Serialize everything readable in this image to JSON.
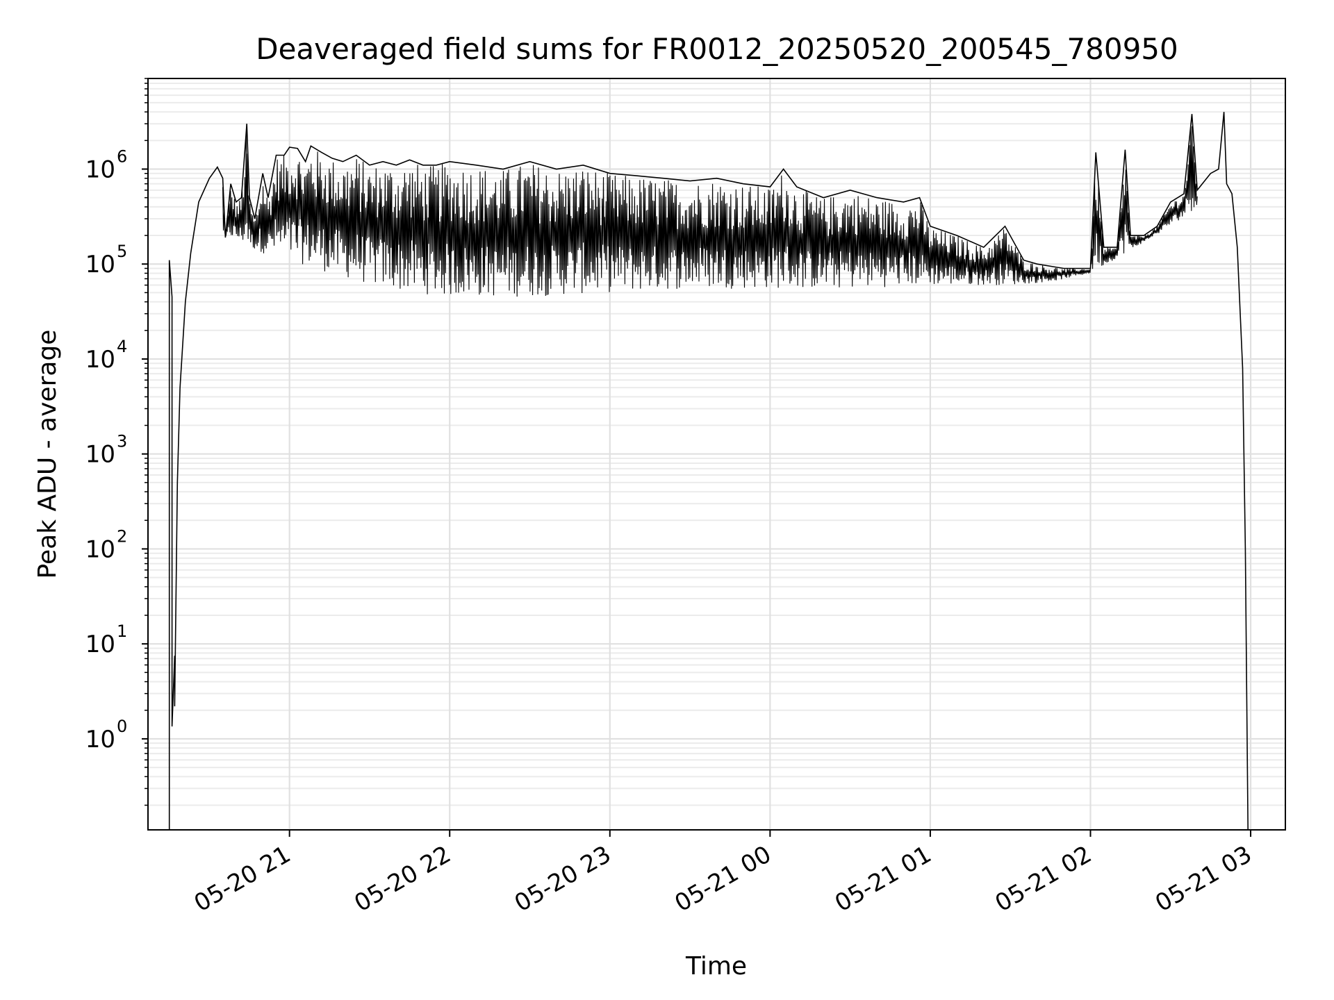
{
  "chart_data": {
    "type": "line",
    "title": "Deaveraged field sums for FR0012_20250520_200545_780950",
    "xlabel": "Time",
    "ylabel": "Peak ADU - average",
    "yscale": "log",
    "grid": true,
    "series_color": "#000000",
    "xlim": [
      "2025-05-20 20:07",
      "2025-05-21 03:13"
    ],
    "ylim": [
      0.11,
      9000000
    ],
    "x_ticks": [
      {
        "label": "05-20 21",
        "value": "2025-05-20 21:00"
      },
      {
        "label": "05-20 22",
        "value": "2025-05-20 22:00"
      },
      {
        "label": "05-20 23",
        "value": "2025-05-20 23:00"
      },
      {
        "label": "05-21 00",
        "value": "2025-05-21 00:00"
      },
      {
        "label": "05-21 01",
        "value": "2025-05-21 01:00"
      },
      {
        "label": "05-21 02",
        "value": "2025-05-21 02:00"
      },
      {
        "label": "05-21 03",
        "value": "2025-05-21 03:00"
      }
    ],
    "y_ticks": [
      {
        "base": "10",
        "exponent": "0",
        "value": 1
      },
      {
        "base": "10",
        "exponent": "1",
        "value": 10
      },
      {
        "base": "10",
        "exponent": "2",
        "value": 100
      },
      {
        "base": "10",
        "exponent": "3",
        "value": 1000
      },
      {
        "base": "10",
        "exponent": "4",
        "value": 10000
      },
      {
        "base": "10",
        "exponent": "5",
        "value": 100000
      },
      {
        "base": "10",
        "exponent": "6",
        "value": 1000000
      }
    ],
    "series_points": [
      [
        "2025-05-20 20:15",
        0.11
      ],
      [
        "2025-05-20 20:15",
        110000
      ],
      [
        "2025-05-20 20:16",
        45000
      ],
      [
        "2025-05-20 20:16",
        1.35
      ],
      [
        "2025-05-20 20:17",
        7.5
      ],
      [
        "2025-05-20 20:17",
        2.2
      ],
      [
        "2025-05-20 20:18",
        500
      ],
      [
        "2025-05-20 20:19",
        5000
      ],
      [
        "2025-05-20 20:21",
        40000
      ],
      [
        "2025-05-20 20:23",
        130000
      ],
      [
        "2025-05-20 20:26",
        450000
      ],
      [
        "2025-05-20 20:30",
        800000
      ],
      [
        "2025-05-20 20:33",
        1050000
      ],
      [
        "2025-05-20 20:35",
        800000
      ],
      [
        "2025-05-20 20:36",
        190000
      ],
      [
        "2025-05-20 20:38",
        700000
      ],
      [
        "2025-05-20 20:40",
        450000
      ],
      [
        "2025-05-20 20:42",
        500000
      ],
      [
        "2025-05-20 20:44",
        3000000
      ],
      [
        "2025-05-20 20:45",
        500000
      ],
      [
        "2025-05-20 20:47",
        300000
      ],
      [
        "2025-05-20 20:50",
        900000
      ],
      [
        "2025-05-20 20:52",
        500000
      ],
      [
        "2025-05-20 20:55",
        1400000
      ],
      [
        "2025-05-20 20:58",
        1400000
      ],
      [
        "2025-05-20 21:00",
        1700000
      ],
      [
        "2025-05-20 21:03",
        1650000
      ],
      [
        "2025-05-20 21:06",
        1200000
      ],
      [
        "2025-05-20 21:08",
        1750000
      ],
      [
        "2025-05-20 21:12",
        1500000
      ],
      [
        "2025-05-20 21:16",
        1300000
      ],
      [
        "2025-05-20 21:20",
        1200000
      ],
      [
        "2025-05-20 21:25",
        1400000
      ],
      [
        "2025-05-20 21:30",
        1100000
      ],
      [
        "2025-05-20 21:35",
        1200000
      ],
      [
        "2025-05-20 21:40",
        1100000
      ],
      [
        "2025-05-20 21:45",
        1250000
      ],
      [
        "2025-05-20 21:50",
        1100000
      ],
      [
        "2025-05-20 21:55",
        1100000
      ],
      [
        "2025-05-20 22:00",
        1200000
      ],
      [
        "2025-05-20 22:10",
        1100000
      ],
      [
        "2025-05-20 22:20",
        1000000
      ],
      [
        "2025-05-20 22:30",
        1200000
      ],
      [
        "2025-05-20 22:40",
        1000000
      ],
      [
        "2025-05-20 22:50",
        1100000
      ],
      [
        "2025-05-20 23:00",
        900000
      ],
      [
        "2025-05-20 23:10",
        850000
      ],
      [
        "2025-05-20 23:20",
        800000
      ],
      [
        "2025-05-20 23:30",
        750000
      ],
      [
        "2025-05-20 23:40",
        800000
      ],
      [
        "2025-05-20 23:50",
        700000
      ],
      [
        "2025-05-21 00:00",
        650000
      ],
      [
        "2025-05-21 00:05",
        1000000
      ],
      [
        "2025-05-21 00:10",
        650000
      ],
      [
        "2025-05-21 00:20",
        500000
      ],
      [
        "2025-05-21 00:30",
        600000
      ],
      [
        "2025-05-21 00:40",
        500000
      ],
      [
        "2025-05-21 00:50",
        450000
      ],
      [
        "2025-05-21 00:56",
        500000
      ],
      [
        "2025-05-21 01:00",
        250000
      ],
      [
        "2025-05-21 01:10",
        200000
      ],
      [
        "2025-05-21 01:20",
        150000
      ],
      [
        "2025-05-21 01:28",
        250000
      ],
      [
        "2025-05-21 01:35",
        110000
      ],
      [
        "2025-05-21 01:40",
        100000
      ],
      [
        "2025-05-21 01:50",
        90000
      ],
      [
        "2025-05-21 02:00",
        90000
      ],
      [
        "2025-05-21 02:02",
        1500000
      ],
      [
        "2025-05-21 02:05",
        150000
      ],
      [
        "2025-05-21 02:10",
        150000
      ],
      [
        "2025-05-21 02:13",
        1600000
      ],
      [
        "2025-05-21 02:15",
        200000
      ],
      [
        "2025-05-21 02:20",
        200000
      ],
      [
        "2025-05-21 02:25",
        250000
      ],
      [
        "2025-05-21 02:30",
        450000
      ],
      [
        "2025-05-21 02:35",
        550000
      ],
      [
        "2025-05-21 02:38",
        3800000
      ],
      [
        "2025-05-21 02:40",
        600000
      ],
      [
        "2025-05-21 02:45",
        900000
      ],
      [
        "2025-05-21 02:48",
        1000000
      ],
      [
        "2025-05-21 02:50",
        4000000
      ],
      [
        "2025-05-21 02:51",
        700000
      ],
      [
        "2025-05-21 02:53",
        550000
      ],
      [
        "2025-05-21 02:55",
        150000
      ],
      [
        "2025-05-21 02:57",
        8000
      ],
      [
        "2025-05-21 02:58",
        100
      ],
      [
        "2025-05-21 02:59",
        0.11
      ]
    ],
    "series_low_envelope": [
      [
        "2025-05-20 20:35",
        200000
      ],
      [
        "2025-05-20 20:50",
        130000
      ],
      [
        "2025-05-20 21:00",
        110000
      ],
      [
        "2025-05-20 21:15",
        80000
      ],
      [
        "2025-05-20 21:30",
        60000
      ],
      [
        "2025-05-20 21:45",
        50000
      ],
      [
        "2025-05-20 22:00",
        45000
      ],
      [
        "2025-05-20 22:30",
        45000
      ],
      [
        "2025-05-20 23:00",
        50000
      ],
      [
        "2025-05-20 23:30",
        55000
      ],
      [
        "2025-05-21 00:00",
        55000
      ],
      [
        "2025-05-21 00:30",
        55000
      ],
      [
        "2025-05-21 01:00",
        60000
      ],
      [
        "2025-05-21 01:30",
        60000
      ],
      [
        "2025-05-21 01:45",
        65000
      ],
      [
        "2025-05-21 02:00",
        80000
      ],
      [
        "2025-05-21 02:15",
        140000
      ],
      [
        "2025-05-21 02:30",
        250000
      ],
      [
        "2025-05-21 02:40",
        400000
      ]
    ]
  }
}
